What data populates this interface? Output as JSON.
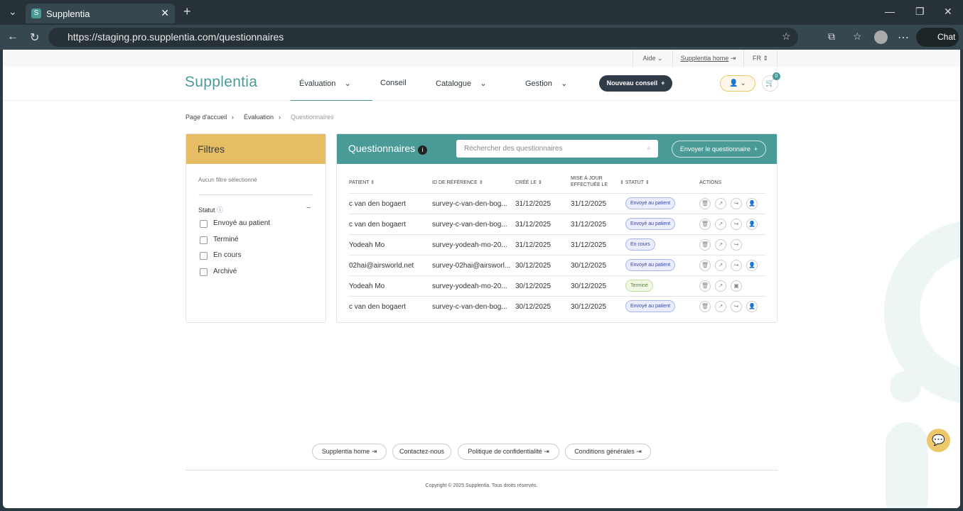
{
  "browser": {
    "tab_title": "Supplentia",
    "url": "https://staging.pro.supplentia.com/questionnaires",
    "chat_label": "Chat"
  },
  "util": {
    "aide": "Aide",
    "home": "Supplentia home",
    "lang": "FR"
  },
  "header": {
    "logo": "Supplentia",
    "nav": [
      "Évaluation",
      "Conseil",
      "Catalogue",
      "Gestion"
    ],
    "new_button": "Nouveau conseil",
    "cart_count": "0"
  },
  "breadcrumb": [
    "Page d'accueil",
    "Évaluation",
    "Questionnaires"
  ],
  "filters": {
    "title": "Filtres",
    "none": "Aucun filtre sélectionné",
    "group": "Statut",
    "options": [
      "Envoyé au patient",
      "Terminé",
      "En cours",
      "Archivé"
    ]
  },
  "table": {
    "title": "Questionnaires",
    "search_placeholder": "Rechercher des questionnaires",
    "send_button": "Envoyer le questionnaire",
    "columns": [
      "PATIENT",
      "ID DE RÉFÉRENCE",
      "CRÉÉ LE",
      "MISE À JOUR EFFECTUÉE LE",
      "STATUT",
      "ACTIONS"
    ],
    "rows": [
      {
        "patient": "c van den bogaert",
        "ref": "survey-c-van-den-bog...",
        "created": "31/12/2025",
        "updated": "31/12/2025",
        "status": "Envoyé au patient"
      },
      {
        "patient": "c van den bogaert",
        "ref": "survey-c-van-den-bog...",
        "created": "31/12/2025",
        "updated": "31/12/2025",
        "status": "Envoyé au patient"
      },
      {
        "patient": "Yodeah Mo",
        "ref": "survey-yodeah-mo-20...",
        "created": "31/12/2025",
        "updated": "31/12/2025",
        "status": "En cours"
      },
      {
        "patient": "02hai@airsworld.net",
        "ref": "survey-02hai@airsworl...",
        "created": "30/12/2025",
        "updated": "30/12/2025",
        "status": "Envoyé au patient"
      },
      {
        "patient": "Yodeah Mo",
        "ref": "survey-yodeah-mo-20...",
        "created": "30/12/2025",
        "updated": "30/12/2025",
        "status": "Terminé"
      },
      {
        "patient": "c van den bogaert",
        "ref": "survey-c-van-den-bog...",
        "created": "30/12/2025",
        "updated": "30/12/2025",
        "status": "Envoyé au patient"
      }
    ]
  },
  "footer": {
    "links": [
      "Supplentia home",
      "Contactez-nous",
      "Politique de confidentialité",
      "Conditions générales"
    ],
    "copyright": "Copyright © 2025 Supplentia. Tous droits réservés."
  },
  "colors": {
    "brand": "#4a9a98",
    "filters_header": "#e6bd63",
    "dark_button": "#2f3c48"
  }
}
